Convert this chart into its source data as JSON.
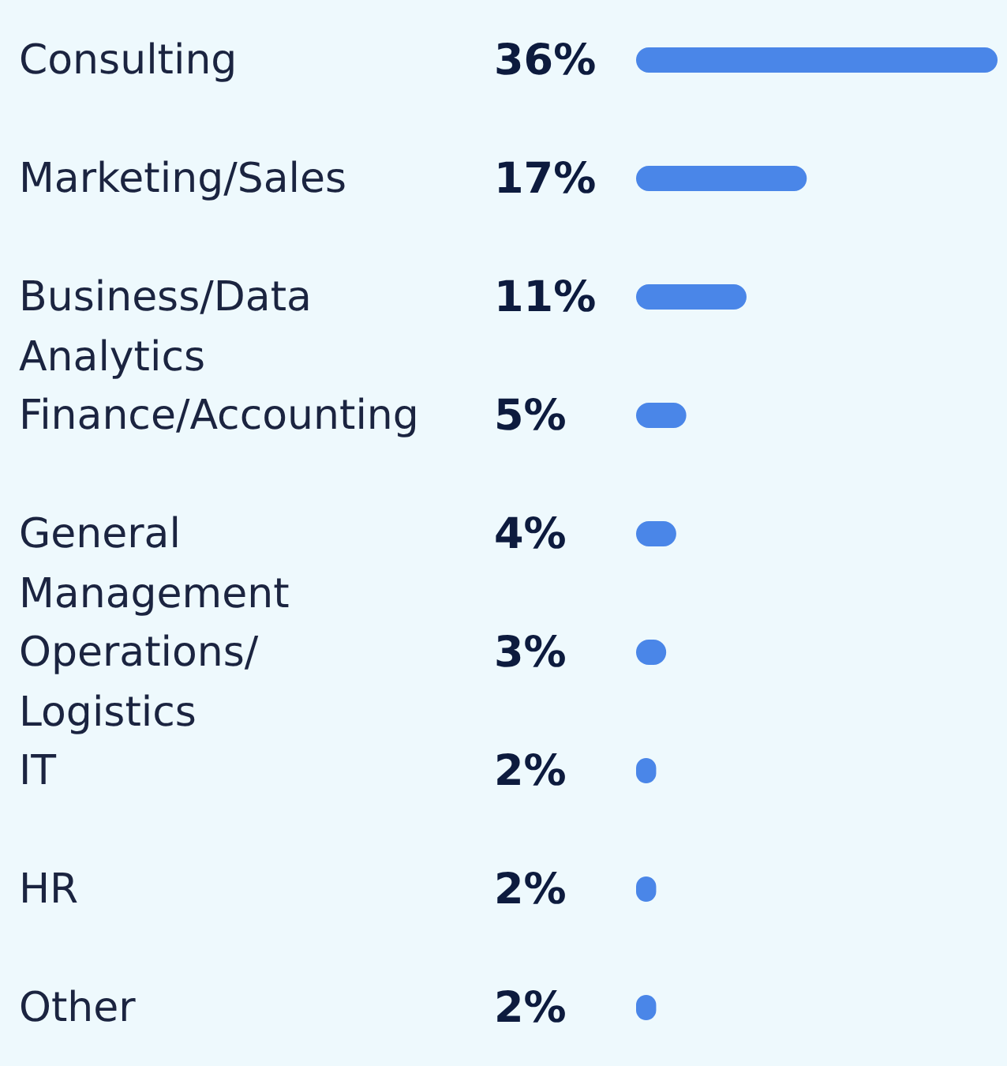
{
  "chart_data": {
    "type": "bar",
    "orientation": "horizontal",
    "categories": [
      "Consulting",
      "Marketing/Sales",
      "Business/Data Analytics",
      "Finance/Accounting",
      "General Management",
      "Operations/ Logistics",
      "IT",
      "HR",
      "Other"
    ],
    "values": [
      36,
      17,
      11,
      5,
      4,
      3,
      2,
      2,
      2
    ],
    "color": "#4a86e8",
    "value_labels": [
      "36%",
      "17%",
      "11%",
      "5%",
      "4%",
      "3%",
      "2%",
      "2%",
      "2%"
    ],
    "grid": false,
    "legend": false
  }
}
